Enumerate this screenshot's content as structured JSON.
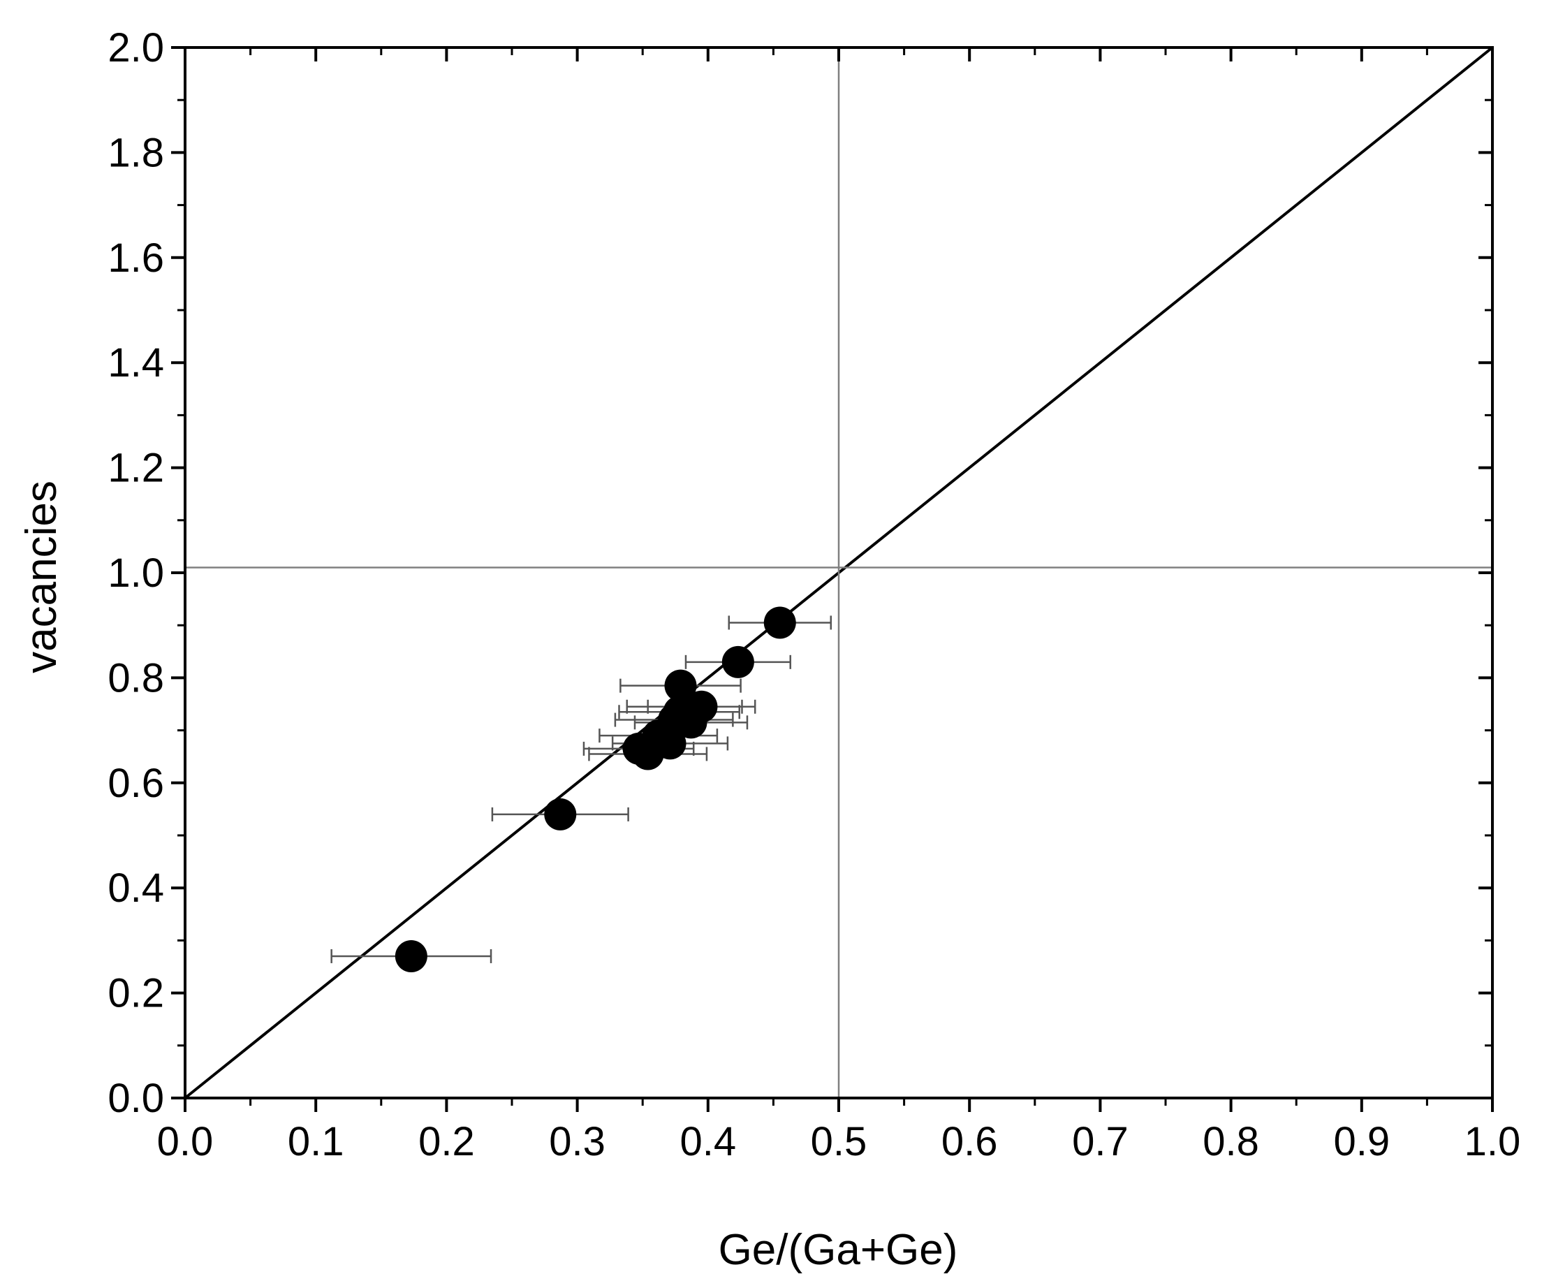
{
  "chart_data": {
    "type": "scatter",
    "title": "",
    "xlabel": "Ge/(Ga+Ge)",
    "ylabel": "vacancies",
    "xlim": [
      0.0,
      1.0
    ],
    "ylim": [
      0.0,
      2.0
    ],
    "x_ticks": [
      "0.0",
      "0.1",
      "0.2",
      "0.3",
      "0.4",
      "0.5",
      "0.6",
      "0.7",
      "0.8",
      "0.9",
      "1.0"
    ],
    "y_ticks": [
      "0.0",
      "0.2",
      "0.4",
      "0.6",
      "0.8",
      "1.0",
      "1.2",
      "1.4",
      "1.6",
      "1.8",
      "2.0"
    ],
    "grid": false,
    "legend": "none",
    "reference_lines": [
      {
        "kind": "diagonal",
        "from": [
          0.0,
          0.0
        ],
        "to": [
          1.0,
          2.0
        ],
        "color": "#000000"
      },
      {
        "kind": "vertical",
        "x": 0.5,
        "color": "#808080"
      },
      {
        "kind": "horizontal",
        "y": 1.01,
        "color": "#808080"
      }
    ],
    "marker_color": "#000000",
    "errorbar_color": "#555555",
    "points": [
      {
        "x": 0.173,
        "y": 0.27,
        "xerr": 0.061
      },
      {
        "x": 0.287,
        "y": 0.54,
        "xerr": 0.052
      },
      {
        "x": 0.347,
        "y": 0.665,
        "xerr": 0.042
      },
      {
        "x": 0.354,
        "y": 0.655,
        "xerr": 0.045
      },
      {
        "x": 0.362,
        "y": 0.69,
        "xerr": 0.045
      },
      {
        "x": 0.371,
        "y": 0.675,
        "xerr": 0.044
      },
      {
        "x": 0.374,
        "y": 0.72,
        "xerr": 0.045
      },
      {
        "x": 0.378,
        "y": 0.735,
        "xerr": 0.046
      },
      {
        "x": 0.379,
        "y": 0.785,
        "xerr": 0.046
      },
      {
        "x": 0.382,
        "y": 0.745,
        "xerr": 0.044
      },
      {
        "x": 0.387,
        "y": 0.715,
        "xerr": 0.043
      },
      {
        "x": 0.395,
        "y": 0.745,
        "xerr": 0.041
      },
      {
        "x": 0.423,
        "y": 0.83,
        "xerr": 0.04
      },
      {
        "x": 0.455,
        "y": 0.905,
        "xerr": 0.039
      }
    ]
  }
}
